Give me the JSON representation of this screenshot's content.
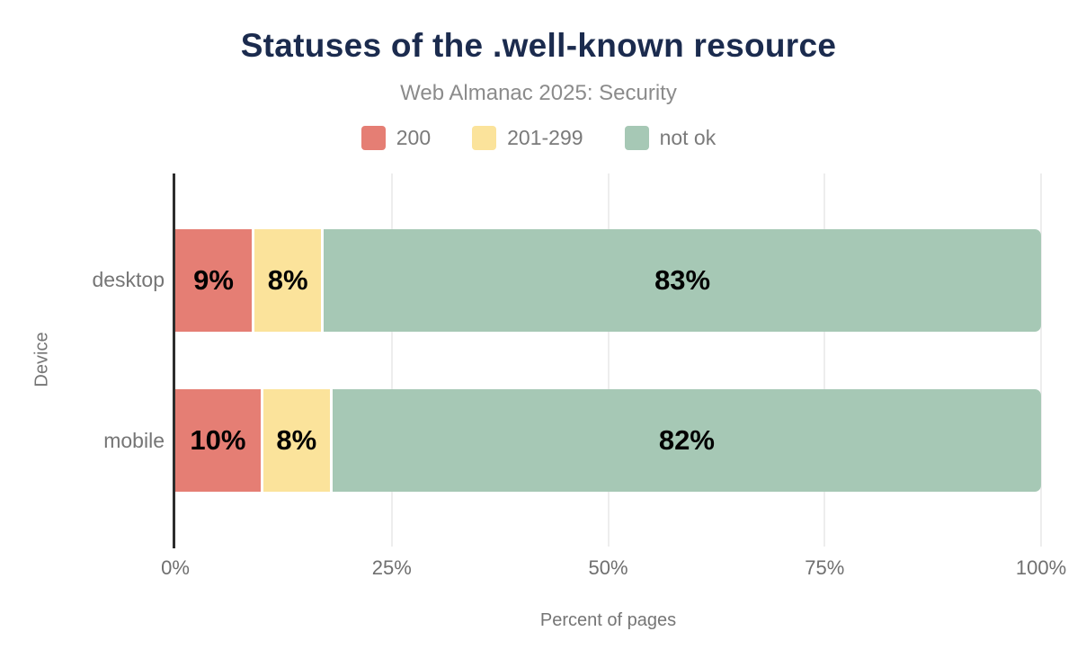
{
  "chart_data": {
    "type": "bar",
    "orientation": "horizontal",
    "stacked": true,
    "title": "Statuses of the .well-known resource",
    "subtitle": "Web Almanac 2025: Security",
    "xlabel": "Percent of pages",
    "ylabel": "Device",
    "categories": [
      "desktop",
      "mobile"
    ],
    "series": [
      {
        "name": "200",
        "color": "#e57e74",
        "values": [
          9,
          10
        ]
      },
      {
        "name": "201-299",
        "color": "#fbe39b",
        "values": [
          8,
          8
        ]
      },
      {
        "name": "not ok",
        "color": "#a6c8b5",
        "values": [
          83,
          82
        ]
      }
    ],
    "data_labels": [
      [
        "9%",
        "8%",
        "83%"
      ],
      [
        "10%",
        "8%",
        "82%"
      ]
    ],
    "x_ticks": [
      {
        "label": "0%",
        "pct": 0
      },
      {
        "label": "25%",
        "pct": 25
      },
      {
        "label": "50%",
        "pct": 50
      },
      {
        "label": "75%",
        "pct": 75
      },
      {
        "label": "100%",
        "pct": 100
      }
    ],
    "xlim": [
      0,
      100
    ],
    "grid": true,
    "legend_position": "top",
    "colors": {
      "title": "#1b2b4e",
      "subtitle": "#8b8b8b",
      "axis_text": "#757575",
      "axis_line": "#2d2d2d",
      "gridline": "#ededed",
      "data_label": "#000000",
      "background": "#ffffff"
    }
  }
}
